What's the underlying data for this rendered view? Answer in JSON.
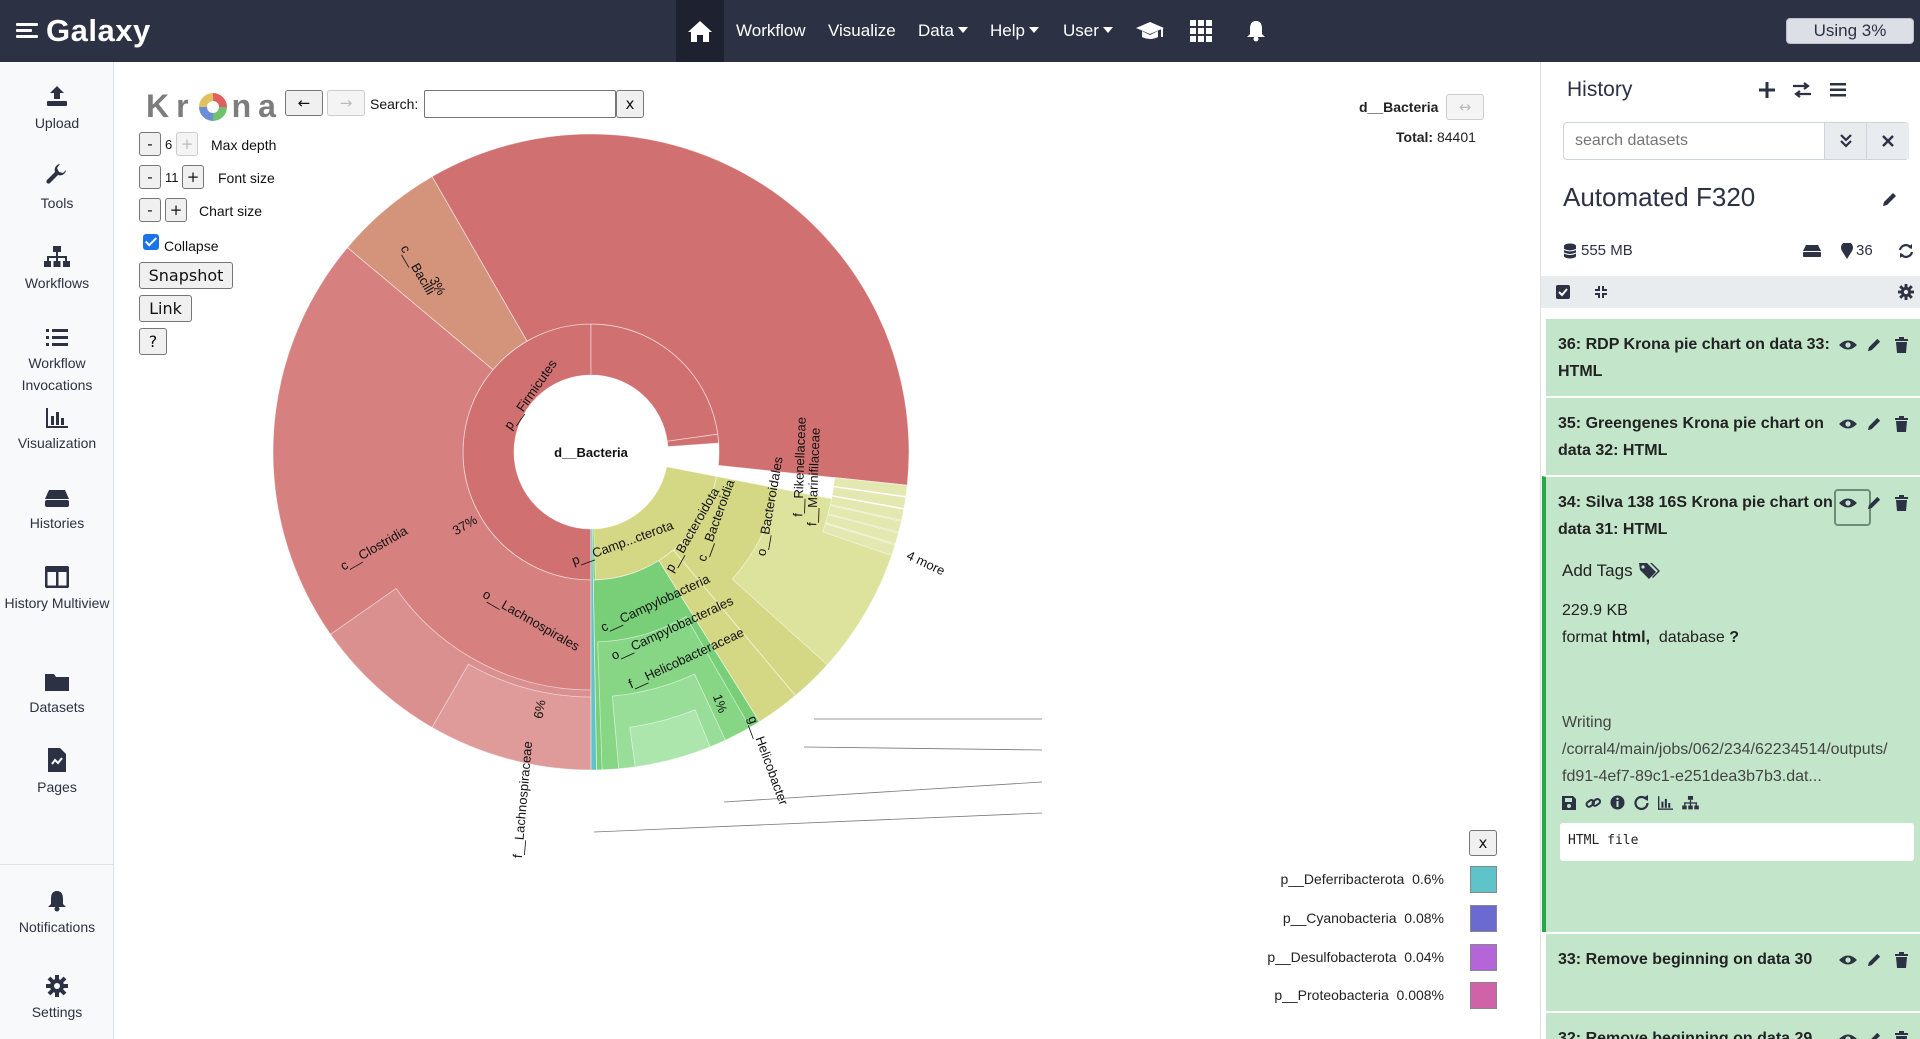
{
  "navbar": {
    "brand": "Galaxy",
    "items": [
      {
        "label": "Workflow"
      },
      {
        "label": "Visualize"
      },
      {
        "label": "Data"
      },
      {
        "label": "Help"
      },
      {
        "label": "User"
      }
    ],
    "quota": "Using 3%"
  },
  "activity_bar": {
    "items": [
      {
        "label": "Upload",
        "icon": "upload-icon"
      },
      {
        "label": "Tools",
        "icon": "wrench-icon"
      },
      {
        "label": "Workflows",
        "icon": "sitemap-icon"
      },
      {
        "label": "Workflow Invocations",
        "icon": "list-icon"
      },
      {
        "label": "Visualization",
        "icon": "chart-bar-icon"
      },
      {
        "label": "Histories",
        "icon": "hdd-icon"
      },
      {
        "label": "History Multiview",
        "icon": "columns-icon"
      },
      {
        "label": "Datasets",
        "icon": "folder-icon"
      },
      {
        "label": "Pages",
        "icon": "file-icon"
      }
    ],
    "bottom": [
      {
        "label": "Notifications",
        "icon": "bell-icon"
      },
      {
        "label": "Settings",
        "icon": "gear-icon"
      }
    ]
  },
  "krona": {
    "logo": "Krona",
    "back": "←",
    "forward": "→",
    "search_label": "Search:",
    "search_value": "",
    "search_clear": "x",
    "max_depth": {
      "minus": "-",
      "value": "6",
      "plus": "+",
      "label": "Max depth"
    },
    "font_size": {
      "minus": "-",
      "value": "11",
      "plus": "+",
      "label": "Font size"
    },
    "chart_size": {
      "minus": "-",
      "plus": "+",
      "label": "Chart size"
    },
    "collapse_label": "Collapse",
    "collapse_checked": true,
    "snapshot": "Snapshot",
    "link": "Link",
    "help": "?",
    "focus": "d__Bacteria",
    "focus_arrow": "↔",
    "total_label": "Total:",
    "total_value": "84401",
    "legend_close": "x"
  },
  "chart_data": {
    "type": "sunburst",
    "center": "d__Bacteria",
    "colors": {
      "firmicutes": "#d07070",
      "bacilli": "#d4937b",
      "clostridia": "#d78080",
      "lachnospirales": "#db9090",
      "lachnospiraceae": "#df9a9a",
      "bacteroidota": "#d4d884",
      "bacteroidales": "#dde29d",
      "rikenellaceae": "#e3e7b0",
      "campylobacterota": "#78cf78",
      "campylobacterales": "#86d686",
      "helicobacteraceae": "#98dd98",
      "helicobacter": "#acE6ac"
    },
    "labels": [
      {
        "text": "p__Firmicutes"
      },
      {
        "text": "c__Bacilli"
      },
      {
        "text": "3%"
      },
      {
        "text": "c__Clostridia"
      },
      {
        "text": "37%"
      },
      {
        "text": "o__Lachnospirales"
      },
      {
        "text": "6%"
      },
      {
        "text": "f__Lachnospiraceae"
      },
      {
        "text": "p__Bacteroidota"
      },
      {
        "text": "c__Bacteroidia"
      },
      {
        "text": "o__Bacteroidales"
      },
      {
        "text": "f__Rikenellaceae"
      },
      {
        "text": "f__Marinifilaceae"
      },
      {
        "text": "4 more"
      },
      {
        "text": "p__Camp...cterota"
      },
      {
        "text": "c__Campylobacteria"
      },
      {
        "text": "o__Campylobacterales"
      },
      {
        "text": "f__Helicobacteraceae"
      },
      {
        "text": "1%"
      },
      {
        "text": "g__Helicobacter"
      }
    ],
    "legend": [
      {
        "name": "p__Deferribacterota",
        "pct": "0.6%",
        "color": "#5fc4c9"
      },
      {
        "name": "p__Cyanobacteria",
        "pct": "0.08%",
        "color": "#6a6ad0"
      },
      {
        "name": "p__Desulfobacterota",
        "pct": "0.04%",
        "color": "#b466d8"
      },
      {
        "name": "p__Proteobacteria",
        "pct": "0.008%",
        "color": "#d062a8"
      }
    ]
  },
  "history": {
    "title": "History",
    "search_placeholder": "search datasets",
    "name": "Automated F320",
    "size": "555 MB",
    "count": "36",
    "datasets": [
      {
        "hid": "36:",
        "name": "RDP Krona pie chart on data 33: HTML"
      },
      {
        "hid": "35:",
        "name": "Greengenes Krona pie chart on data 32: HTML"
      },
      {
        "hid": "34:",
        "name": "Silva 138 16S Krona pie chart on data 31: HTML"
      },
      {
        "hid": "33:",
        "name": "Remove beginning on data 30"
      },
      {
        "hid": "32:",
        "name": "Remove beginning on data 29"
      }
    ],
    "expanded": {
      "add_tags": "Add Tags",
      "size": "229.9 KB",
      "format_label": "format",
      "format_value": "html,",
      "database_label": "database",
      "database_value": "?",
      "info_line1": "Writing",
      "info_line2": "/corral4/main/jobs/062/234/62234514/outputs/",
      "info_line3": "fd91-4ef7-89c1-e251dea3b7b3.dat...",
      "peek": "HTML file"
    }
  }
}
